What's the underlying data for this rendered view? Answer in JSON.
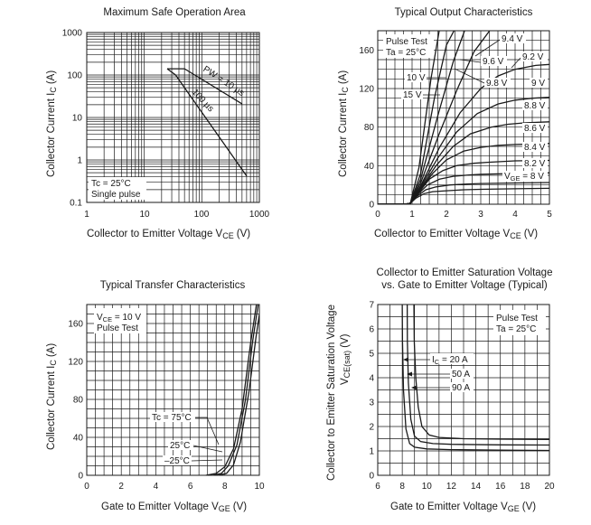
{
  "chart_data": [
    {
      "id": "soa",
      "type": "line",
      "title": "Maximum Safe Operation Area",
      "xlabel": "Collector to Emitter Voltage",
      "xlabel_symbol": "V",
      "xlabel_sub": "CE",
      "xlabel_unit": "(V)",
      "ylabel": "Collector Current",
      "ylabel_symbol": "I",
      "ylabel_sub": "C",
      "ylabel_unit": "(A)",
      "xscale": "log",
      "yscale": "log",
      "xlim": [
        1,
        1000
      ],
      "ylim": [
        0.1,
        1000
      ],
      "xticks": [
        "1",
        "10",
        "100",
        "1000"
      ],
      "yticks": [
        "0.1",
        "1",
        "10",
        "100",
        "1000"
      ],
      "grid": true,
      "note_lines": [
        "Tc = 25°C",
        "Single pulse"
      ],
      "series": [
        {
          "name": "PW = 10 µs",
          "x": [
            25,
            50,
            500
          ],
          "y": [
            140,
            140,
            21
          ]
        },
        {
          "name": "100 µs",
          "x": [
            25,
            35,
            600
          ],
          "y": [
            140,
            100,
            0.42
          ]
        }
      ]
    },
    {
      "id": "output",
      "type": "line",
      "title": "Typical Output Characteristics",
      "xlabel": "Collector to Emitter Voltage",
      "xlabel_symbol": "V",
      "xlabel_sub": "CE",
      "xlabel_unit": "(V)",
      "ylabel": "Collector Current",
      "ylabel_symbol": "I",
      "ylabel_sub": "C",
      "ylabel_unit": "(A)",
      "xlim": [
        0,
        5
      ],
      "ylim": [
        0,
        180
      ],
      "xticks": [
        "0",
        "1",
        "2",
        "3",
        "4",
        "5"
      ],
      "yticks": [
        "0",
        "40",
        "80",
        "120",
        "160"
      ],
      "grid": true,
      "note_lines": [
        "Pulse Test",
        "Ta = 25°C"
      ],
      "series": [
        {
          "name": "V_GE = 8 V",
          "x": [
            0,
            0.8,
            0.95,
            1.1,
            1.35,
            1.6,
            2,
            2.5,
            3,
            4,
            5
          ],
          "y": [
            0,
            0,
            1,
            6,
            11,
            13,
            14,
            15,
            15.5,
            16,
            16.5
          ]
        },
        {
          "name": "8.2 V",
          "x": [
            0,
            0.8,
            0.95,
            1.1,
            1.4,
            1.7,
            2.1,
            2.6,
            3,
            4,
            5
          ],
          "y": [
            0,
            0,
            1,
            7,
            15,
            18,
            20,
            21,
            21.5,
            22,
            22.5
          ]
        },
        {
          "name": "8.4 V",
          "x": [
            0,
            0.8,
            0.95,
            1.1,
            1.45,
            1.8,
            2.2,
            2.7,
            3,
            4,
            5
          ],
          "y": [
            0,
            0,
            1,
            8,
            20,
            26,
            29,
            30.5,
            31,
            32,
            32.5
          ]
        },
        {
          "name": "8.6 V",
          "x": [
            0,
            0.8,
            0.95,
            1.15,
            1.5,
            1.9,
            2.3,
            2.8,
            3.2,
            4,
            5
          ],
          "y": [
            0,
            0,
            1,
            10,
            26,
            35,
            40,
            42.5,
            43.5,
            45,
            45.5
          ]
        },
        {
          "name": "8.8 V",
          "x": [
            0,
            0.8,
            0.95,
            1.15,
            1.6,
            2,
            2.5,
            3,
            3.5,
            4,
            5
          ],
          "y": [
            0,
            0,
            1,
            11,
            32,
            46,
            55,
            59,
            61,
            62,
            63
          ]
        },
        {
          "name": "9 V",
          "x": [
            0,
            0.8,
            0.95,
            1.2,
            1.7,
            2.2,
            2.7,
            3.3,
            3.8,
            4.3,
            5
          ],
          "y": [
            0,
            0,
            1,
            14,
            40,
            60,
            73,
            80,
            83,
            84.5,
            85.5
          ]
        },
        {
          "name": "9.2 V",
          "x": [
            0,
            0.8,
            0.95,
            1.2,
            1.75,
            2.3,
            2.9,
            3.5,
            4,
            4.5,
            5
          ],
          "y": [
            0,
            0,
            1,
            15,
            48,
            75,
            94,
            104,
            108,
            110,
            111
          ]
        },
        {
          "name": "9.4 V",
          "x": [
            0,
            0.8,
            0.95,
            1.25,
            1.8,
            2.4,
            3,
            3.5,
            4,
            4.6,
            5
          ],
          "y": [
            0,
            0,
            1,
            19,
            59,
            95,
            120,
            133,
            140,
            144,
            145
          ]
        },
        {
          "name": "9.6 V",
          "x": [
            0,
            0.8,
            0.95,
            1.25,
            1.8,
            2.3,
            2.8,
            3.3
          ],
          "y": [
            0,
            0,
            1,
            22,
            74,
            118,
            158,
            182
          ]
        },
        {
          "name": "9.8 V",
          "x": [
            0,
            0.8,
            0.95,
            1.25,
            1.75,
            2.2,
            2.55
          ],
          "y": [
            0,
            0,
            1,
            26,
            92,
            148,
            182
          ]
        },
        {
          "name": "10 V",
          "x": [
            0,
            0.8,
            0.95,
            1.25,
            1.65,
            2.0,
            2.25
          ],
          "y": [
            0,
            0,
            1,
            32,
            110,
            165,
            182
          ]
        },
        {
          "name": "15 V",
          "x": [
            0,
            0.8,
            0.95,
            1.2,
            1.55,
            1.8
          ],
          "y": [
            0,
            0,
            1,
            38,
            130,
            182
          ]
        }
      ]
    },
    {
      "id": "transfer",
      "type": "line",
      "title": "Typical Transfer Characteristics",
      "xlabel": "Gate to Emitter Voltage",
      "xlabel_symbol": "V",
      "xlabel_sub": "GE",
      "xlabel_unit": "(V)",
      "ylabel": "Collector Current",
      "ylabel_symbol": "I",
      "ylabel_sub": "C",
      "ylabel_unit": "(A)",
      "xlim": [
        0,
        10
      ],
      "ylim": [
        0,
        180
      ],
      "xticks": [
        "0",
        "2",
        "4",
        "6",
        "8",
        "10"
      ],
      "yticks": [
        "0",
        "40",
        "80",
        "120",
        "160"
      ],
      "grid": true,
      "note_lines": [
        "V_CE = 10 V",
        "Pulse Test"
      ],
      "series": [
        {
          "name": "Tc = 75°C",
          "x": [
            6.9,
            7.5,
            8.0,
            8.5,
            9.0,
            9.5,
            9.85
          ],
          "y": [
            0,
            2,
            9,
            28,
            70,
            140,
            182
          ]
        },
        {
          "name": "25°C",
          "x": [
            7.3,
            7.8,
            8.2,
            8.7,
            9.2,
            9.6,
            9.95
          ],
          "y": [
            0,
            2,
            10,
            32,
            80,
            140,
            182
          ]
        },
        {
          "name": "-25°C",
          "x": [
            7.6,
            8.1,
            8.5,
            8.9,
            9.4,
            9.8,
            10.1
          ],
          "y": [
            0,
            2,
            11,
            35,
            88,
            145,
            182
          ]
        }
      ]
    },
    {
      "id": "saturation",
      "type": "line",
      "title_lines": [
        "Collector to Emitter Saturation Voltage",
        "vs. Gate to Emitter Voltage (Typical)"
      ],
      "xlabel": "Gate to Emitter Voltage",
      "xlabel_symbol": "V",
      "xlabel_sub": "GE",
      "xlabel_unit": "(V)",
      "ylabel": "Collector to Emitter Saturation Voltage",
      "ylabel_symbol": "V",
      "ylabel_sub": "CE(sat)",
      "ylabel_unit": "(V)",
      "xlim": [
        6,
        20
      ],
      "ylim": [
        0,
        7
      ],
      "xticks": [
        "6",
        "8",
        "10",
        "12",
        "14",
        "16",
        "18",
        "20"
      ],
      "yticks": [
        "0",
        "1",
        "2",
        "3",
        "4",
        "5",
        "6",
        "7"
      ],
      "grid": true,
      "note_lines": [
        "Pulse Test",
        "Ta = 25°C"
      ],
      "series": [
        {
          "name": "I_C = 20 A",
          "x": [
            8.0,
            8.02,
            8.1,
            8.3,
            8.6,
            9,
            10,
            12,
            16,
            20
          ],
          "y": [
            7.2,
            5.5,
            3.5,
            1.9,
            1.3,
            1.15,
            1.08,
            1.05,
            1.03,
            1.02
          ]
        },
        {
          "name": "50 A",
          "x": [
            8.4,
            8.42,
            8.5,
            8.7,
            9.0,
            9.5,
            10.5,
            12,
            16,
            20
          ],
          "y": [
            7.2,
            5.5,
            3.8,
            2.3,
            1.6,
            1.38,
            1.3,
            1.27,
            1.25,
            1.24
          ]
        },
        {
          "name": "90 A",
          "x": [
            8.95,
            8.98,
            9.1,
            9.3,
            9.6,
            10.2,
            11,
            13,
            16,
            20
          ],
          "y": [
            7.2,
            5.5,
            4.0,
            2.8,
            2.0,
            1.65,
            1.55,
            1.5,
            1.48,
            1.47
          ]
        }
      ]
    }
  ],
  "labels": {
    "soa": {
      "pw10": "PW = 10 µs",
      "pw100": "100 µs"
    },
    "output": {
      "vge8_prefix": "V",
      "vge8_sub": "GE",
      "vge8_suffix": " = 8 V",
      "l82": "8.2 V",
      "l84": "8.4 V",
      "l86": "8.6 V",
      "l88": "8.8 V",
      "l9": "9 V",
      "l92": "9.2 V",
      "l94": "9.4 V",
      "l96": "9.6 V",
      "l98": "9.8 V",
      "l10": "10 V",
      "l15": "15 V"
    },
    "transfer": {
      "note1_prefix": "V",
      "note1_sub": "CE",
      "note1_suffix": " = 10 V",
      "t75": "Tc = 75°C",
      "t25": "25°C",
      "tm25": "–25°C"
    },
    "saturation": {
      "ic_prefix": "I",
      "ic_sub": "C",
      "ic_suffix": " = 20 A",
      "i50": "50 A",
      "i90": "90 A"
    }
  }
}
